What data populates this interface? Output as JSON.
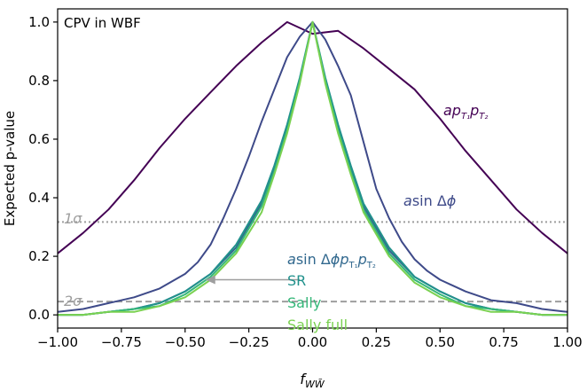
{
  "chart_data": {
    "type": "line",
    "title": "CPV in WBF",
    "xlabel": "f_{WW̃}",
    "ylabel": "Expected p-value",
    "xlim": [
      -1.0,
      1.0
    ],
    "ylim": [
      0.0,
      1.0
    ],
    "x_ticks": [
      "−1.00",
      "−0.75",
      "−0.50",
      "−0.25",
      "0.00",
      "0.25",
      "0.50",
      "0.75",
      "1.00"
    ],
    "y_ticks": [
      "0.0",
      "0.2",
      "0.4",
      "0.6",
      "0.8",
      "1.0"
    ],
    "grid": false,
    "reference_lines": [
      {
        "label": "1σ",
        "y": 0.3173,
        "style": "dotted",
        "color": "#9e9e9e"
      },
      {
        "label": "2σ",
        "y": 0.0455,
        "style": "dashed",
        "color": "#9e9e9e"
      }
    ],
    "annotations": [
      {
        "type": "arrow",
        "from": [
          -0.05,
          0.12
        ],
        "to": [
          -0.42,
          0.12
        ],
        "color": "#9e9e9e"
      }
    ],
    "series": [
      {
        "name": "a p_{T1} p_{T2}",
        "color": "#440154",
        "x": [
          -1.0,
          -0.9,
          -0.8,
          -0.7,
          -0.6,
          -0.5,
          -0.4,
          -0.3,
          -0.2,
          -0.1,
          0.0,
          0.1,
          0.2,
          0.3,
          0.4,
          0.5,
          0.6,
          0.7,
          0.8,
          0.9,
          1.0
        ],
        "y": [
          0.21,
          0.28,
          0.36,
          0.46,
          0.57,
          0.67,
          0.76,
          0.85,
          0.93,
          1.0,
          0.96,
          0.97,
          0.91,
          0.84,
          0.77,
          0.67,
          0.56,
          0.46,
          0.36,
          0.28,
          0.21
        ]
      },
      {
        "name": "a sin Δφ",
        "color": "#3e4a89",
        "x": [
          -1.0,
          -0.9,
          -0.8,
          -0.7,
          -0.6,
          -0.5,
          -0.45,
          -0.4,
          -0.35,
          -0.3,
          -0.25,
          -0.2,
          -0.15,
          -0.1,
          -0.05,
          0.0,
          0.05,
          0.1,
          0.15,
          0.2,
          0.25,
          0.3,
          0.35,
          0.4,
          0.45,
          0.5,
          0.6,
          0.7,
          0.8,
          0.9,
          1.0
        ],
        "y": [
          0.01,
          0.02,
          0.04,
          0.06,
          0.09,
          0.14,
          0.18,
          0.24,
          0.33,
          0.43,
          0.54,
          0.66,
          0.77,
          0.88,
          0.95,
          1.0,
          0.94,
          0.85,
          0.75,
          0.59,
          0.43,
          0.33,
          0.25,
          0.19,
          0.15,
          0.12,
          0.08,
          0.05,
          0.04,
          0.02,
          0.01
        ]
      },
      {
        "name": "a sin Δφ p_{T1} p_{T2}",
        "color": "#31688e",
        "x": [
          -1.0,
          -0.9,
          -0.8,
          -0.7,
          -0.6,
          -0.5,
          -0.4,
          -0.3,
          -0.2,
          -0.15,
          -0.1,
          -0.05,
          0.0,
          0.05,
          0.1,
          0.15,
          0.2,
          0.3,
          0.4,
          0.5,
          0.6,
          0.7,
          0.8,
          0.9,
          1.0
        ],
        "y": [
          0.0,
          0.0,
          0.01,
          0.02,
          0.04,
          0.08,
          0.14,
          0.23,
          0.38,
          0.5,
          0.64,
          0.8,
          1.0,
          0.8,
          0.64,
          0.5,
          0.37,
          0.22,
          0.13,
          0.08,
          0.04,
          0.02,
          0.01,
          0.0,
          0.0
        ]
      },
      {
        "name": "SR",
        "color": "#21918c",
        "x": [
          -1.0,
          -0.9,
          -0.8,
          -0.7,
          -0.6,
          -0.5,
          -0.4,
          -0.3,
          -0.2,
          -0.15,
          -0.1,
          -0.05,
          0.0,
          0.05,
          0.1,
          0.15,
          0.2,
          0.3,
          0.4,
          0.5,
          0.6,
          0.7,
          0.8,
          0.9,
          1.0
        ],
        "y": [
          0.0,
          0.0,
          0.01,
          0.02,
          0.04,
          0.08,
          0.14,
          0.24,
          0.39,
          0.51,
          0.65,
          0.81,
          1.0,
          0.81,
          0.65,
          0.51,
          0.38,
          0.23,
          0.13,
          0.08,
          0.04,
          0.02,
          0.01,
          0.0,
          0.0
        ]
      },
      {
        "name": "Sally",
        "color": "#35b779",
        "x": [
          -1.0,
          -0.9,
          -0.8,
          -0.7,
          -0.6,
          -0.5,
          -0.4,
          -0.3,
          -0.2,
          -0.15,
          -0.1,
          -0.05,
          0.0,
          0.05,
          0.1,
          0.15,
          0.2,
          0.3,
          0.4,
          0.5,
          0.6,
          0.7,
          0.8,
          0.9,
          1.0
        ],
        "y": [
          0.0,
          0.0,
          0.01,
          0.02,
          0.03,
          0.07,
          0.13,
          0.22,
          0.37,
          0.49,
          0.63,
          0.8,
          1.0,
          0.8,
          0.63,
          0.49,
          0.36,
          0.21,
          0.12,
          0.07,
          0.03,
          0.02,
          0.01,
          0.0,
          0.0
        ]
      },
      {
        "name": "Sally full",
        "color": "#7ad151",
        "x": [
          -1.0,
          -0.9,
          -0.8,
          -0.7,
          -0.6,
          -0.5,
          -0.4,
          -0.3,
          -0.2,
          -0.15,
          -0.1,
          -0.05,
          0.0,
          0.05,
          0.1,
          0.15,
          0.2,
          0.3,
          0.4,
          0.5,
          0.6,
          0.7,
          0.8,
          0.9,
          1.0
        ],
        "y": [
          0.0,
          0.0,
          0.01,
          0.01,
          0.03,
          0.06,
          0.12,
          0.21,
          0.35,
          0.48,
          0.62,
          0.79,
          1.0,
          0.79,
          0.62,
          0.48,
          0.35,
          0.2,
          0.11,
          0.06,
          0.03,
          0.01,
          0.01,
          0.0,
          0.0
        ]
      }
    ]
  }
}
